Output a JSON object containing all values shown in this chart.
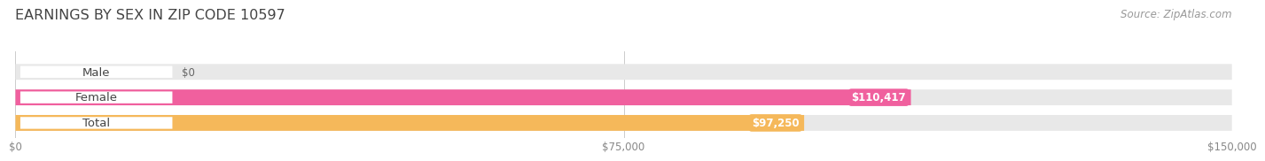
{
  "title": "EARNINGS BY SEX IN ZIP CODE 10597",
  "source_text": "Source: ZipAtlas.com",
  "categories": [
    "Male",
    "Female",
    "Total"
  ],
  "values": [
    0,
    110417,
    97250
  ],
  "bar_colors": [
    "#a8c8e8",
    "#f0609e",
    "#f5b85a"
  ],
  "bar_bg_color": "#e8e8e8",
  "xmax": 150000,
  "xticks": [
    0,
    75000,
    150000
  ],
  "xtick_labels": [
    "$0",
    "$75,000",
    "$150,000"
  ],
  "value_labels": [
    "$0",
    "$110,417",
    "$97,250"
  ],
  "bg_color": "#ffffff",
  "title_color": "#444444",
  "title_fontsize": 11.5,
  "source_fontsize": 8.5,
  "label_fontsize": 9.5,
  "value_fontsize": 8.5
}
